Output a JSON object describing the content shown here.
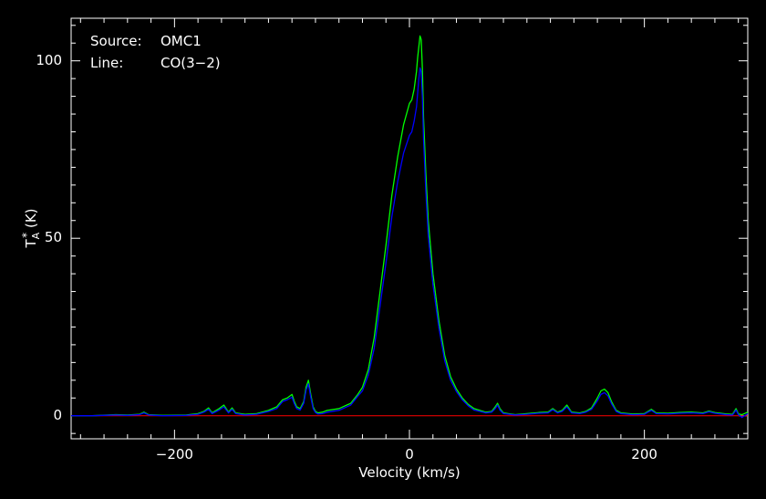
{
  "chart_data": {
    "type": "line",
    "title": "",
    "xlabel": "Velocity (km/s)",
    "ylabel": "T",
    "ylabel_sub": "A",
    "ylabel_sup": "*",
    "ylabel_unit": "(K)",
    "xlim": [
      -288,
      288
    ],
    "ylim": [
      -6.5,
      112
    ],
    "x_ticks_major": [
      -200,
      0,
      200
    ],
    "x_tick_labels": [
      "−200",
      "0",
      "200"
    ],
    "y_ticks_major": [
      0,
      50,
      100
    ],
    "y_tick_labels": [
      "0",
      "50",
      "100"
    ],
    "grid": false,
    "annotations": [
      {
        "key": "Source:",
        "value": "OMC1"
      },
      {
        "key": "Line:",
        "value": "CO(3−2)"
      }
    ],
    "colors": {
      "background": "#000000",
      "axes": "#ffffff",
      "series1": "#00ff00",
      "series2": "#0000ff",
      "baseline": "#ff0000"
    },
    "series": [
      {
        "color": "#00ff00",
        "x": [
          -288,
          -270,
          -250,
          -240,
          -230,
          -226,
          -222,
          -210,
          -190,
          -180,
          -175,
          -171,
          -168,
          -162,
          -158,
          -154,
          -151,
          -148,
          -140,
          -130,
          -120,
          -113,
          -108,
          -104,
          -100,
          -98,
          -96,
          -93,
          -90,
          -88,
          -86,
          -84,
          -82,
          -80,
          -78,
          -74,
          -70,
          -60,
          -50,
          -44,
          -40,
          -35,
          -30,
          -25,
          -20,
          -15,
          -10,
          -5,
          0,
          2,
          4,
          6,
          7,
          8,
          9,
          10,
          11,
          12,
          14,
          16,
          20,
          25,
          30,
          35,
          40,
          45,
          50,
          55,
          60,
          65,
          70,
          73,
          75,
          77,
          80,
          90,
          100,
          110,
          118,
          122,
          126,
          130,
          134,
          138,
          145,
          150,
          155,
          160,
          163,
          166,
          169,
          172,
          176,
          180,
          190,
          200,
          203,
          206,
          210,
          220,
          230,
          240,
          250,
          255,
          260,
          270,
          275,
          278,
          280,
          283,
          288
        ],
        "y": [
          0,
          0,
          0.3,
          0.2,
          0.4,
          1.0,
          0.3,
          0.1,
          0.2,
          0.6,
          1.2,
          2.2,
          0.8,
          2.0,
          3.0,
          1.0,
          2.2,
          0.8,
          0.4,
          0.6,
          1.5,
          2.5,
          4.5,
          5.0,
          6.0,
          4.0,
          2.5,
          2.0,
          4.0,
          8.0,
          10.0,
          6.0,
          2.5,
          1.2,
          0.8,
          1.0,
          1.5,
          2.0,
          3.5,
          6.0,
          8.0,
          13.0,
          22.0,
          35.0,
          48.0,
          62.0,
          73.0,
          82.0,
          88.0,
          89.0,
          92.0,
          97.0,
          101.0,
          104.0,
          107.0,
          106.0,
          98.0,
          84.0,
          68.0,
          55.0,
          40.0,
          27.0,
          17.0,
          11.0,
          7.5,
          5.0,
          3.2,
          2.0,
          1.5,
          1.0,
          1.2,
          2.5,
          3.5,
          2.0,
          0.8,
          0.3,
          0.6,
          0.9,
          1.0,
          2.0,
          1.0,
          1.5,
          3.0,
          1.0,
          0.8,
          1.2,
          2.2,
          5.0,
          7.0,
          7.5,
          6.5,
          4.0,
          1.5,
          0.8,
          0.5,
          0.6,
          1.2,
          1.8,
          0.8,
          0.7,
          0.9,
          1.0,
          0.8,
          1.3,
          0.9,
          0.5,
          0.4,
          2.0,
          0.5,
          0.3,
          1.0
        ]
      },
      {
        "color": "#0000ff",
        "x": [
          -288,
          -270,
          -250,
          -240,
          -230,
          -226,
          -222,
          -210,
          -190,
          -180,
          -175,
          -171,
          -168,
          -162,
          -158,
          -154,
          -151,
          -148,
          -140,
          -130,
          -120,
          -113,
          -108,
          -104,
          -100,
          -98,
          -96,
          -93,
          -90,
          -88,
          -86,
          -84,
          -82,
          -80,
          -78,
          -74,
          -70,
          -60,
          -50,
          -44,
          -40,
          -35,
          -30,
          -25,
          -20,
          -15,
          -10,
          -5,
          0,
          2,
          4,
          6,
          7,
          8,
          9,
          10,
          11,
          12,
          14,
          16,
          20,
          25,
          30,
          35,
          40,
          45,
          50,
          55,
          60,
          65,
          70,
          73,
          75,
          77,
          80,
          90,
          100,
          110,
          118,
          122,
          126,
          130,
          134,
          138,
          145,
          150,
          155,
          160,
          163,
          166,
          169,
          172,
          176,
          180,
          190,
          200,
          203,
          206,
          210,
          220,
          230,
          240,
          250,
          255,
          260,
          270,
          275,
          278,
          280,
          283,
          288
        ],
        "y": [
          0,
          0,
          0.2,
          0.1,
          0.3,
          0.8,
          0.2,
          0.0,
          0.1,
          0.4,
          1.0,
          1.8,
          0.6,
          1.6,
          2.5,
          0.8,
          1.8,
          0.6,
          0.2,
          0.4,
          1.2,
          2.0,
          4.0,
          4.5,
          5.2,
          3.4,
          2.0,
          1.6,
          3.5,
          7.2,
          9.0,
          5.2,
          2.0,
          0.9,
          0.5,
          0.6,
          1.0,
          1.5,
          3.0,
          5.5,
          7.0,
          11.5,
          19.0,
          31.0,
          43.0,
          56.0,
          66.0,
          74.0,
          79.0,
          80.0,
          83.0,
          87.0,
          91.0,
          95.0,
          98.0,
          97.0,
          90.0,
          78.0,
          63.0,
          51.0,
          37.0,
          25.0,
          15.5,
          10.0,
          6.8,
          4.5,
          2.8,
          1.6,
          1.2,
          0.8,
          1.0,
          2.0,
          3.0,
          1.6,
          0.6,
          0.2,
          0.4,
          0.7,
          0.8,
          1.7,
          0.8,
          1.2,
          2.5,
          0.8,
          0.6,
          1.0,
          1.8,
          4.2,
          6.0,
          6.5,
          5.6,
          3.4,
          1.2,
          0.6,
          0.3,
          0.4,
          1.0,
          1.5,
          0.6,
          0.5,
          0.7,
          0.8,
          0.6,
          1.1,
          0.7,
          0.3,
          0.2,
          1.6,
          0.3,
          -0.5,
          0.6
        ]
      }
    ],
    "baseline_y": 0
  }
}
